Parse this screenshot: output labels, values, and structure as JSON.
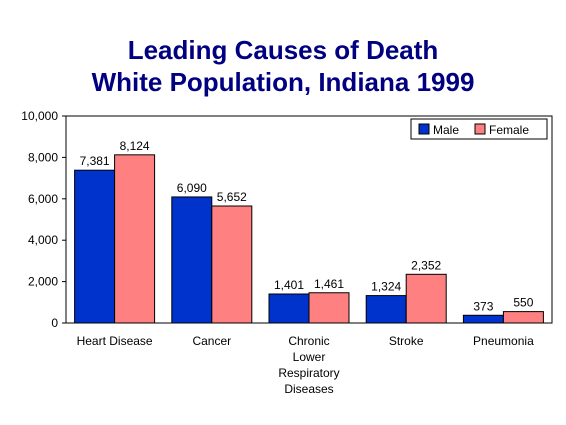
{
  "chart_data": {
    "type": "bar",
    "title": "Leading Causes of Death",
    "subtitle": "White Population, Indiana 1999",
    "categories": [
      [
        "Heart Disease"
      ],
      [
        "Cancer"
      ],
      [
        "Chronic",
        "Lower",
        "Respiratory",
        "Diseases"
      ],
      [
        "Stroke"
      ],
      [
        "Pneumonia"
      ]
    ],
    "series": [
      {
        "name": "Male",
        "color": "#0033cc",
        "values": [
          7381,
          6090,
          1401,
          1324,
          373
        ],
        "labels": [
          "7,381",
          "6,090",
          "1,401",
          "1,324",
          "373"
        ]
      },
      {
        "name": "Female",
        "color": "#ff8080",
        "values": [
          8124,
          5652,
          1461,
          2352,
          550
        ],
        "labels": [
          "8,124",
          "5,652",
          "1,461",
          "2,352",
          "550"
        ]
      }
    ],
    "ylim": [
      0,
      10000
    ],
    "yticks": [
      0,
      2000,
      4000,
      6000,
      8000,
      10000
    ],
    "ytick_labels": [
      "0",
      "2,000",
      "4,000",
      "6,000",
      "8,000",
      "10,000"
    ],
    "xlabel": "",
    "ylabel": "",
    "grid": false,
    "legend_position": "top-right"
  }
}
